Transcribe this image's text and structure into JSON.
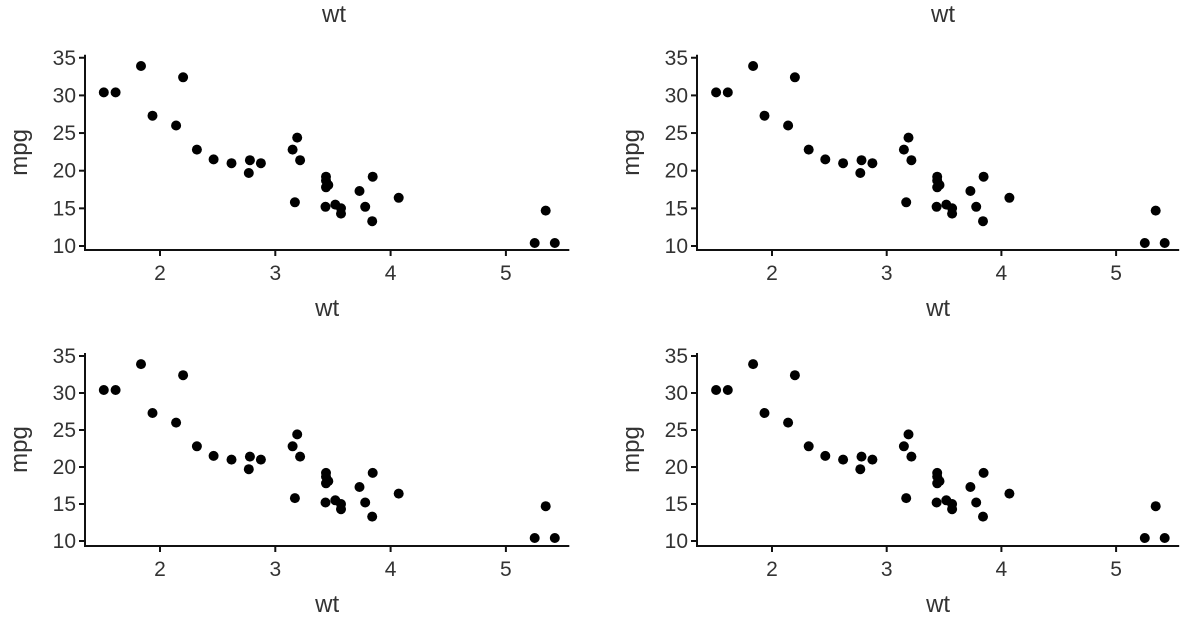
{
  "top_labels": [
    "wt",
    "wt"
  ],
  "chart_data": [
    {
      "type": "scatter",
      "xlabel": "wt",
      "ylabel": "mpg",
      "xticks": [
        2,
        3,
        4,
        5
      ],
      "yticks": [
        10,
        15,
        20,
        25,
        30,
        35
      ],
      "x": [
        2.62,
        2.875,
        2.32,
        3.215,
        3.44,
        3.46,
        3.57,
        3.19,
        3.15,
        3.44,
        3.44,
        4.07,
        3.73,
        3.78,
        5.25,
        5.424,
        5.345,
        2.2,
        1.615,
        1.835,
        2.465,
        3.52,
        3.435,
        3.84,
        3.845,
        1.935,
        2.14,
        1.513,
        3.17,
        2.77,
        3.57,
        2.78
      ],
      "y": [
        21.0,
        21.0,
        22.8,
        21.4,
        18.7,
        18.1,
        14.3,
        24.4,
        22.8,
        19.2,
        17.8,
        16.4,
        17.3,
        15.2,
        10.4,
        10.4,
        14.7,
        32.4,
        30.4,
        33.9,
        21.5,
        15.5,
        15.2,
        13.3,
        19.2,
        27.3,
        26.0,
        30.4,
        15.8,
        19.7,
        15.0,
        21.4
      ]
    },
    {
      "type": "scatter",
      "xlabel": "wt",
      "ylabel": "mpg",
      "xticks": [
        2,
        3,
        4,
        5
      ],
      "yticks": [
        10,
        15,
        20,
        25,
        30,
        35
      ],
      "x": [
        2.62,
        2.875,
        2.32,
        3.215,
        3.44,
        3.46,
        3.57,
        3.19,
        3.15,
        3.44,
        3.44,
        4.07,
        3.73,
        3.78,
        5.25,
        5.424,
        5.345,
        2.2,
        1.615,
        1.835,
        2.465,
        3.52,
        3.435,
        3.84,
        3.845,
        1.935,
        2.14,
        1.513,
        3.17,
        2.77,
        3.57,
        2.78
      ],
      "y": [
        21.0,
        21.0,
        22.8,
        21.4,
        18.7,
        18.1,
        14.3,
        24.4,
        22.8,
        19.2,
        17.8,
        16.4,
        17.3,
        15.2,
        10.4,
        10.4,
        14.7,
        32.4,
        30.4,
        33.9,
        21.5,
        15.5,
        15.2,
        13.3,
        19.2,
        27.3,
        26.0,
        30.4,
        15.8,
        19.7,
        15.0,
        21.4
      ]
    },
    {
      "type": "scatter",
      "xlabel": "wt",
      "ylabel": "mpg",
      "xticks": [
        2,
        3,
        4,
        5
      ],
      "yticks": [
        10,
        15,
        20,
        25,
        30,
        35
      ],
      "x": [
        2.62,
        2.875,
        2.32,
        3.215,
        3.44,
        3.46,
        3.57,
        3.19,
        3.15,
        3.44,
        3.44,
        4.07,
        3.73,
        3.78,
        5.25,
        5.424,
        5.345,
        2.2,
        1.615,
        1.835,
        2.465,
        3.52,
        3.435,
        3.84,
        3.845,
        1.935,
        2.14,
        1.513,
        3.17,
        2.77,
        3.57,
        2.78
      ],
      "y": [
        21.0,
        21.0,
        22.8,
        21.4,
        18.7,
        18.1,
        14.3,
        24.4,
        22.8,
        19.2,
        17.8,
        16.4,
        17.3,
        15.2,
        10.4,
        10.4,
        14.7,
        32.4,
        30.4,
        33.9,
        21.5,
        15.5,
        15.2,
        13.3,
        19.2,
        27.3,
        26.0,
        30.4,
        15.8,
        19.7,
        15.0,
        21.4
      ]
    },
    {
      "type": "scatter",
      "xlabel": "wt",
      "ylabel": "mpg",
      "xticks": [
        2,
        3,
        4,
        5
      ],
      "yticks": [
        10,
        15,
        20,
        25,
        30,
        35
      ],
      "x": [
        2.62,
        2.875,
        2.32,
        3.215,
        3.44,
        3.46,
        3.57,
        3.19,
        3.15,
        3.44,
        3.44,
        4.07,
        3.73,
        3.78,
        5.25,
        5.424,
        5.345,
        2.2,
        1.615,
        1.835,
        2.465,
        3.52,
        3.435,
        3.84,
        3.845,
        1.935,
        2.14,
        1.513,
        3.17,
        2.77,
        3.57,
        2.78
      ],
      "y": [
        21.0,
        21.0,
        22.8,
        21.4,
        18.7,
        18.1,
        14.3,
        24.4,
        22.8,
        19.2,
        17.8,
        16.4,
        17.3,
        15.2,
        10.4,
        10.4,
        14.7,
        32.4,
        30.4,
        33.9,
        21.5,
        15.5,
        15.2,
        13.3,
        19.2,
        27.3,
        26.0,
        30.4,
        15.8,
        19.7,
        15.0,
        21.4
      ]
    }
  ]
}
